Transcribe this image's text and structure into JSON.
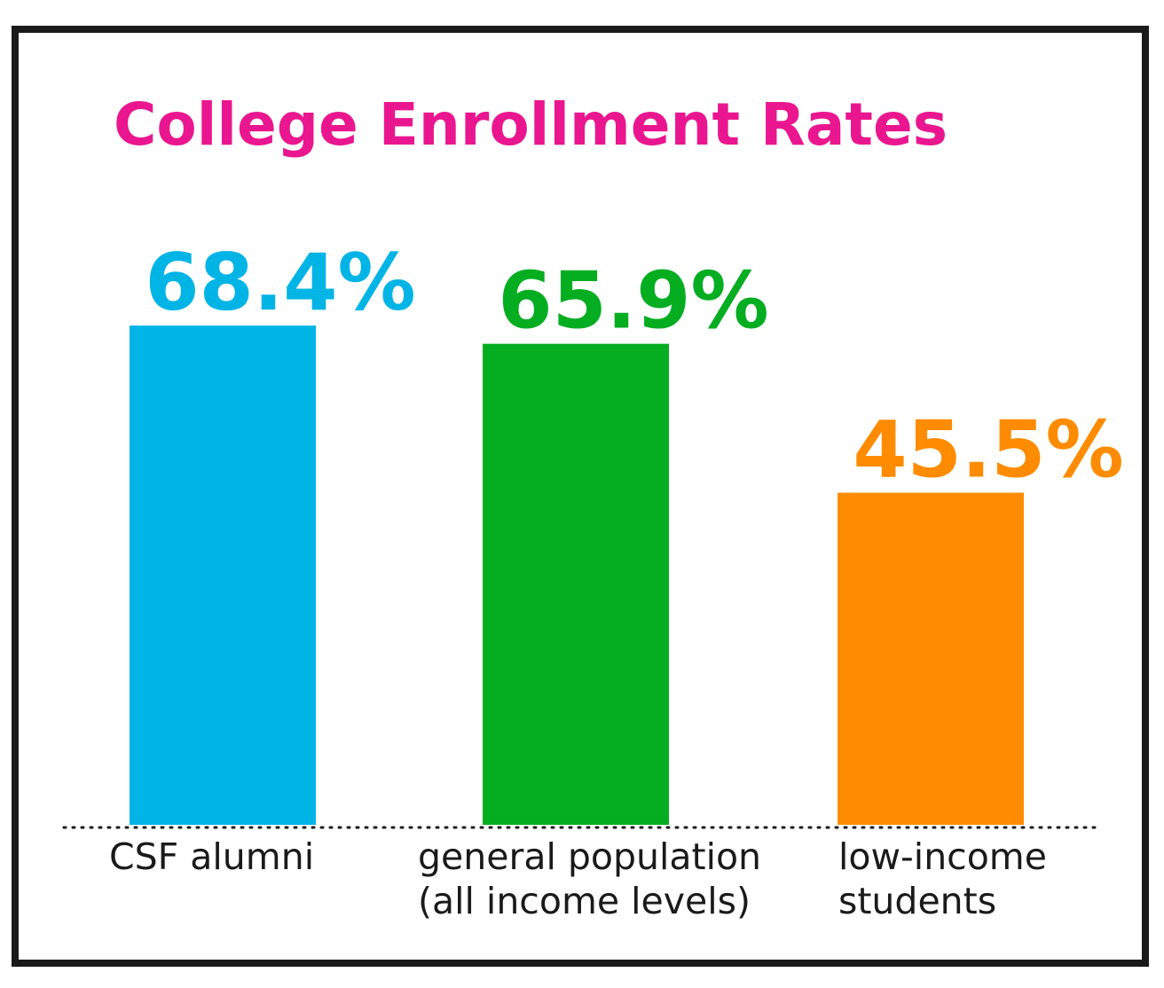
{
  "chart_data": {
    "type": "bar",
    "title": "College Enrollment Rates",
    "xlabel": "",
    "ylabel": "",
    "ylim": [
      0,
      100
    ],
    "grid": false,
    "legend": "none",
    "title_color": "#ea168f",
    "categories": [
      [
        "CSF alumni"
      ],
      [
        "general population",
        "(all income levels)"
      ],
      [
        "low-income",
        "students"
      ]
    ],
    "values": [
      68.4,
      65.9,
      45.5
    ],
    "value_labels": [
      "68.4%",
      "65.9%",
      "45.5%"
    ],
    "colors": [
      "#00b4e6",
      "#05ad21",
      "#ff8c00"
    ]
  }
}
